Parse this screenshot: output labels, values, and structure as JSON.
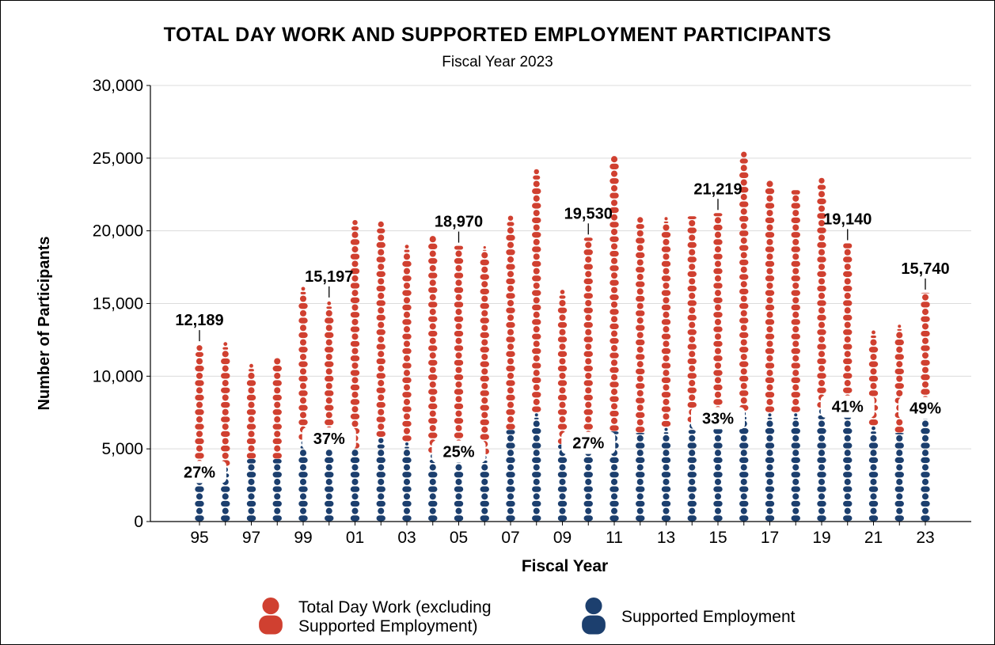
{
  "chart_data": {
    "type": "bar",
    "title": "TOTAL DAY WORK AND SUPPORTED EMPLOYMENT PARTICIPANTS",
    "subtitle": "Fiscal Year 2023",
    "xlabel": "Fiscal Year",
    "ylabel": "Number of Participants",
    "ylim": [
      0,
      30000
    ],
    "yticks": [
      0,
      5000,
      10000,
      15000,
      20000,
      25000,
      30000
    ],
    "ytick_labels": [
      "0",
      "5,000",
      "10,000",
      "15,000",
      "20,000",
      "25,000",
      "30,000"
    ],
    "stacked": true,
    "grid": true,
    "legend_position": "bottom",
    "categories": [
      "95",
      "96",
      "97",
      "98",
      "99",
      "00",
      "01",
      "02",
      "03",
      "04",
      "05",
      "06",
      "07",
      "08",
      "09",
      "10",
      "11",
      "12",
      "13",
      "14",
      "15",
      "16",
      "17",
      "18",
      "19",
      "20",
      "21",
      "22",
      "23"
    ],
    "xtick_labels": [
      "95",
      "",
      "97",
      "",
      "99",
      "",
      "01",
      "",
      "03",
      "",
      "05",
      "",
      "07",
      "",
      "09",
      "",
      "11",
      "",
      "13",
      "",
      "15",
      "",
      "17",
      "",
      "19",
      "",
      "21",
      "",
      "23"
    ],
    "series": [
      {
        "name": "Supported Employment",
        "color": "#1c3f6e",
        "values": [
          3300,
          3800,
          4300,
          4300,
          5600,
          5600,
          5000,
          5800,
          5500,
          4700,
          4700,
          4600,
          6300,
          7500,
          5300,
          5300,
          6200,
          6100,
          6500,
          6800,
          7000,
          7600,
          7500,
          7500,
          7800,
          7800,
          6600,
          6100,
          7700
        ]
      },
      {
        "name": "Total Day Work (excluding Supported Employment)",
        "color": "#d04030",
        "values": [
          8889,
          8600,
          6600,
          7000,
          10600,
          9597,
          15800,
          14900,
          13600,
          15000,
          14270,
          14400,
          14800,
          16800,
          10700,
          14230,
          19000,
          14900,
          14500,
          14200,
          14219,
          17900,
          16000,
          15300,
          15900,
          11340,
          6600,
          7500,
          8040
        ]
      }
    ],
    "annotations": [
      {
        "category": "95",
        "total_label": "12,189",
        "share_label": "27%"
      },
      {
        "category": "00",
        "total_label": "15,197",
        "share_label": "37%"
      },
      {
        "category": "05",
        "total_label": "18,970",
        "share_label": "25%"
      },
      {
        "category": "10",
        "total_label": "19,530",
        "share_label": "27%"
      },
      {
        "category": "15",
        "total_label": "21,219",
        "share_label": "33%"
      },
      {
        "category": "20",
        "total_label": "19,140",
        "share_label": "41%"
      },
      {
        "category": "23",
        "total_label": "15,740",
        "share_label": "49%"
      }
    ],
    "legend": [
      {
        "label_line1": "Total Day Work (excluding",
        "label_line2": "Supported Employment)",
        "color": "#d04030",
        "icon": "person-icon"
      },
      {
        "label_line1": "Supported Employment",
        "label_line2": "",
        "color": "#1c3f6e",
        "icon": "person-icon"
      }
    ]
  }
}
